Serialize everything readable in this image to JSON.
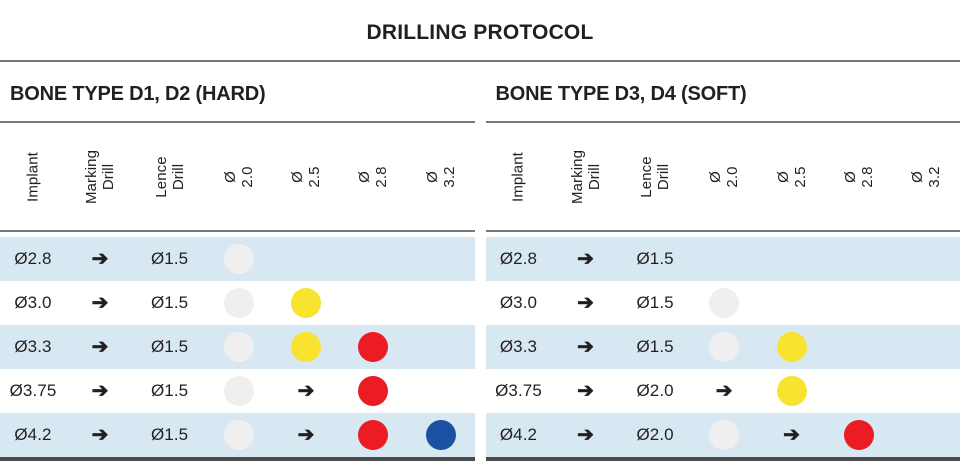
{
  "title": "DRILLING PROTOCOL",
  "glyphs": {
    "arrow": "➔"
  },
  "colors": {
    "text": "#231f20",
    "rule_gray": "#77787b",
    "rule_dark": "#4b4b4d",
    "row_alt": "#d8e8f3",
    "dots": {
      "white": "#f0eff0",
      "yellow": "#f8e32e",
      "red": "#ec1c24",
      "blue": "#1b51a2"
    }
  },
  "tables": [
    {
      "title": "BONE TYPE D1, D2 (HARD)",
      "columns": [
        "Implant",
        "Marking\nDrill",
        "Lence Drill",
        "Ø 2.0",
        "Ø 2.5",
        "Ø 2.8",
        "Ø 3.2"
      ],
      "rows": [
        [
          "Ø2.8",
          "➔",
          "Ø1.5",
          "dot:white",
          "",
          "",
          ""
        ],
        [
          "Ø3.0",
          "➔",
          "Ø1.5",
          "dot:white",
          "dot:yellow",
          "",
          ""
        ],
        [
          "Ø3.3",
          "➔",
          "Ø1.5",
          "dot:white",
          "dot:yellow",
          "dot:red",
          ""
        ],
        [
          "Ø3.75",
          "➔",
          "Ø1.5",
          "dot:white",
          "➔",
          "dot:red",
          ""
        ],
        [
          "Ø4.2",
          "➔",
          "Ø1.5",
          "dot:white",
          "➔",
          "dot:red",
          "dot:blue"
        ]
      ]
    },
    {
      "title": "BONE TYPE D3, D4 (SOFT)",
      "columns": [
        "Implant",
        "Marking\nDrill",
        "Lence Drill",
        "Ø 2.0",
        "Ø 2.5",
        "Ø 2.8",
        "Ø 3.2"
      ],
      "rows": [
        [
          "Ø2.8",
          "➔",
          "Ø1.5",
          "",
          "",
          "",
          ""
        ],
        [
          "Ø3.0",
          "➔",
          "Ø1.5",
          "dot:white",
          "",
          "",
          ""
        ],
        [
          "Ø3.3",
          "➔",
          "Ø1.5",
          "dot:white",
          "dot:yellow",
          "",
          ""
        ],
        [
          "Ø3.75",
          "➔",
          "Ø2.0",
          "➔",
          "dot:yellow",
          "",
          ""
        ],
        [
          "Ø4.2",
          "➔",
          "Ø2.0",
          "dot:white",
          "➔",
          "dot:red",
          ""
        ]
      ]
    }
  ]
}
